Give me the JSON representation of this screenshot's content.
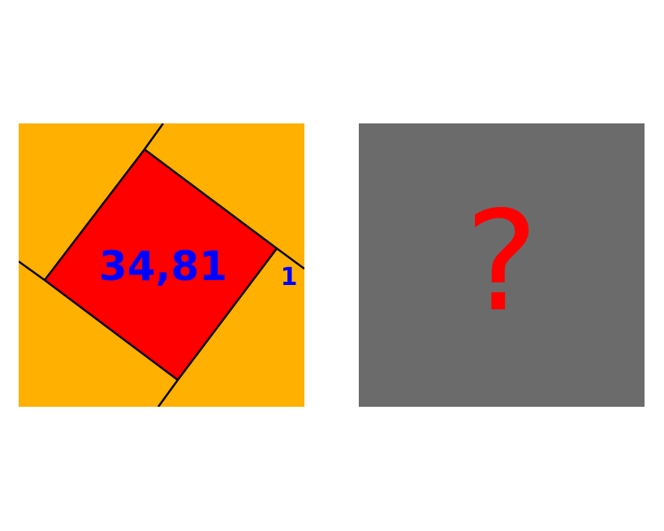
{
  "puzzle": {
    "inner_square_value": "34,81",
    "side_label": "1",
    "unknown_symbol": "?"
  },
  "colors": {
    "outer_square": "#FFB000",
    "inner_square": "#FF0000",
    "number_text": "#0000FF",
    "unknown_panel": "#6B6B6B",
    "question_mark": "#FF0000",
    "lines": "#000000"
  }
}
